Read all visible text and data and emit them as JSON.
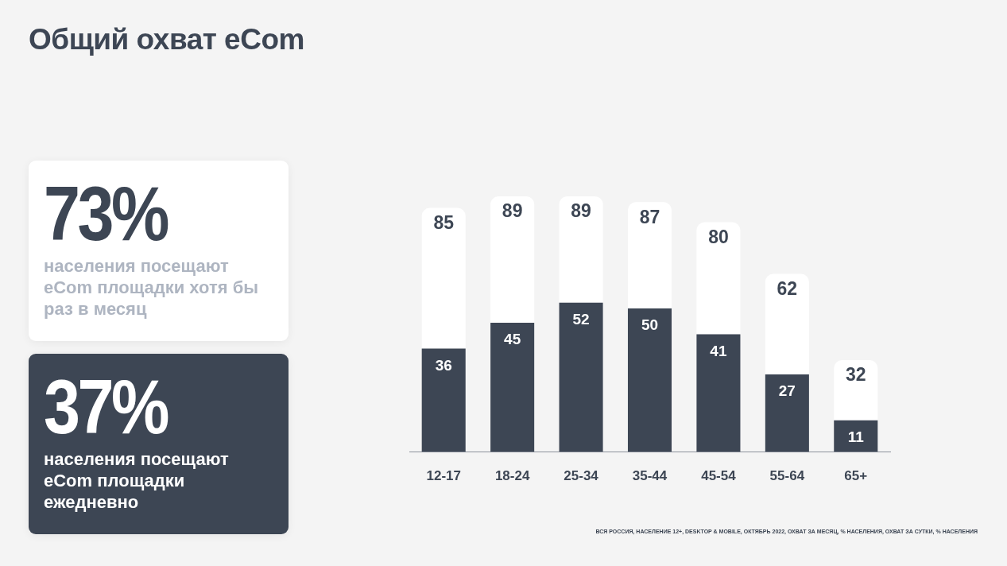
{
  "chart_data": {
    "type": "bar",
    "title": "Общий охват eCom",
    "categories": [
      "12-17",
      "18-24",
      "25-34",
      "35-44",
      "45-54",
      "55-64",
      "65+"
    ],
    "series": [
      {
        "color": "#3d4654",
        "values": [
          36,
          45,
          52,
          50,
          41,
          27,
          11
        ],
        "value_labels": [
          "36",
          "45",
          "52",
          "50",
          "41",
          "27",
          "11"
        ]
      },
      {
        "color": "#ffffff",
        "values": [
          49,
          44,
          37,
          37,
          39,
          35,
          21
        ]
      }
    ],
    "stacked": true,
    "totals": [
      "85",
      "89",
      "89",
      "87",
      "80",
      "62",
      "32"
    ],
    "tick_labels": "x",
    "grid": false,
    "legend": false,
    "annotations": [
      "73%",
      "населения посещают eCom площадки хотя бы раз в месяц",
      "37%",
      "населения посещают eCom площадки ежедневно",
      "ВСЯ РОССИЯ, НАСЕЛЕНИЕ 12+, DESKTOP & MOBILE, ОКТЯБРЬ 2022, ОХВАТ ЗА МЕСЯЦ, % НАСЕЛЕНИЯ, ОХВАТ ЗА СУТКИ, % НАСЕЛЕНИЯ"
    ]
  }
}
